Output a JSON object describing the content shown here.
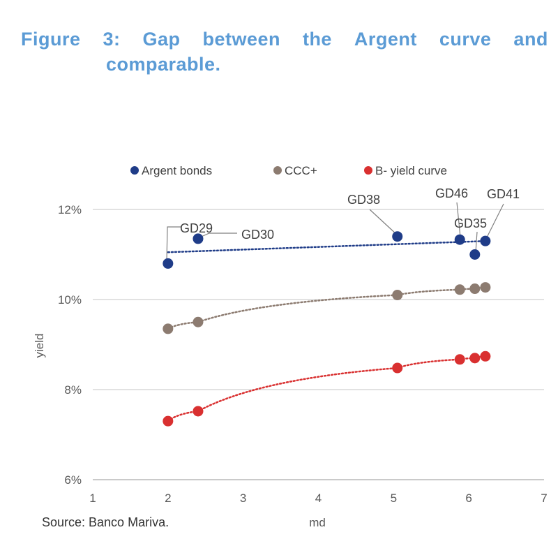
{
  "figure": {
    "title_words": [
      "Figure",
      "3:",
      "Gap",
      "between",
      "the",
      "Argent",
      "curve",
      "and"
    ],
    "title_line2": "comparable.",
    "source": "Source: Banco Mariva."
  },
  "chart_data": {
    "type": "scatter",
    "xlabel": "md",
    "ylabel": "yield",
    "xlim": [
      1,
      7
    ],
    "ylim": [
      6,
      12
    ],
    "xticks": [
      1,
      2,
      3,
      4,
      5,
      6,
      7
    ],
    "yticks": [
      6,
      8,
      10,
      12
    ],
    "ytick_labels": [
      "6%",
      "8%",
      "10%",
      "12%"
    ],
    "grid": "horizontal",
    "legend_position": "top",
    "series": [
      {
        "name": "Argent bonds",
        "color": "#1f3c88",
        "points": [
          {
            "x": 2.0,
            "y": 10.8,
            "label": "GD29"
          },
          {
            "x": 2.4,
            "y": 11.35,
            "label": "GD30"
          },
          {
            "x": 5.05,
            "y": 11.4,
            "label": "GD38"
          },
          {
            "x": 5.88,
            "y": 11.33,
            "label": "GD46"
          },
          {
            "x": 6.08,
            "y": 11.0,
            "label": "GD35"
          },
          {
            "x": 6.22,
            "y": 11.3,
            "label": "GD41"
          }
        ],
        "trend": [
          [
            2.0,
            11.05
          ],
          [
            6.25,
            11.3
          ]
        ]
      },
      {
        "name": "CCC+",
        "color": "#8c7b70",
        "points": [
          {
            "x": 2.0,
            "y": 9.35
          },
          {
            "x": 2.4,
            "y": 9.5
          },
          {
            "x": 5.05,
            "y": 10.1
          },
          {
            "x": 5.88,
            "y": 10.22
          },
          {
            "x": 6.08,
            "y": 10.24
          },
          {
            "x": 6.22,
            "y": 10.27
          }
        ]
      },
      {
        "name": "B- yield curve",
        "color": "#d93030",
        "points": [
          {
            "x": 2.0,
            "y": 7.3
          },
          {
            "x": 2.4,
            "y": 7.52
          },
          {
            "x": 5.05,
            "y": 8.48
          },
          {
            "x": 5.88,
            "y": 8.67
          },
          {
            "x": 6.08,
            "y": 8.7
          },
          {
            "x": 6.22,
            "y": 8.74
          }
        ]
      }
    ]
  }
}
